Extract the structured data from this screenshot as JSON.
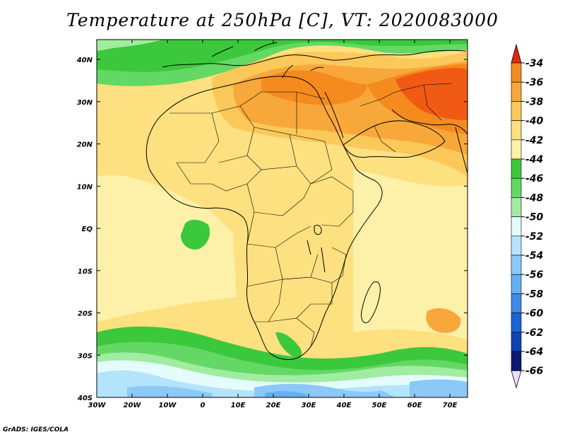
{
  "title": "Temperature at 250hPa [C], VT: 2020083000",
  "credit": "GrADS: IGES/COLA",
  "lat_labels": [
    "40N",
    "30N",
    "20N",
    "10N",
    "EQ",
    "10S",
    "20S",
    "30S",
    "40S"
  ],
  "lon_labels": [
    "30W",
    "20W",
    "10W",
    "0",
    "10E",
    "20E",
    "30E",
    "40E",
    "50E",
    "60E",
    "70E"
  ],
  "colorbar": {
    "labels": [
      "-34",
      "-36",
      "-38",
      "-40",
      "-42",
      "-44",
      "-46",
      "-48",
      "-50",
      "-52",
      "-54",
      "-56",
      "-58",
      "-60",
      "-62",
      "-64",
      "-66"
    ],
    "colors": [
      "#f05a14",
      "#f58a1e",
      "#f8a83a",
      "#fbc85a",
      "#fde080",
      "#fdf0a8",
      "#3cc83c",
      "#64d864",
      "#a0eca0",
      "#e4fcfc",
      "#b4e4fc",
      "#8cc8f8",
      "#64b0f0",
      "#3c8ce8",
      "#1c64d8",
      "#0c44b4",
      "#0a1a72"
    ],
    "over_color": "#e02a0a",
    "under_color": "#e8e0f8"
  }
}
